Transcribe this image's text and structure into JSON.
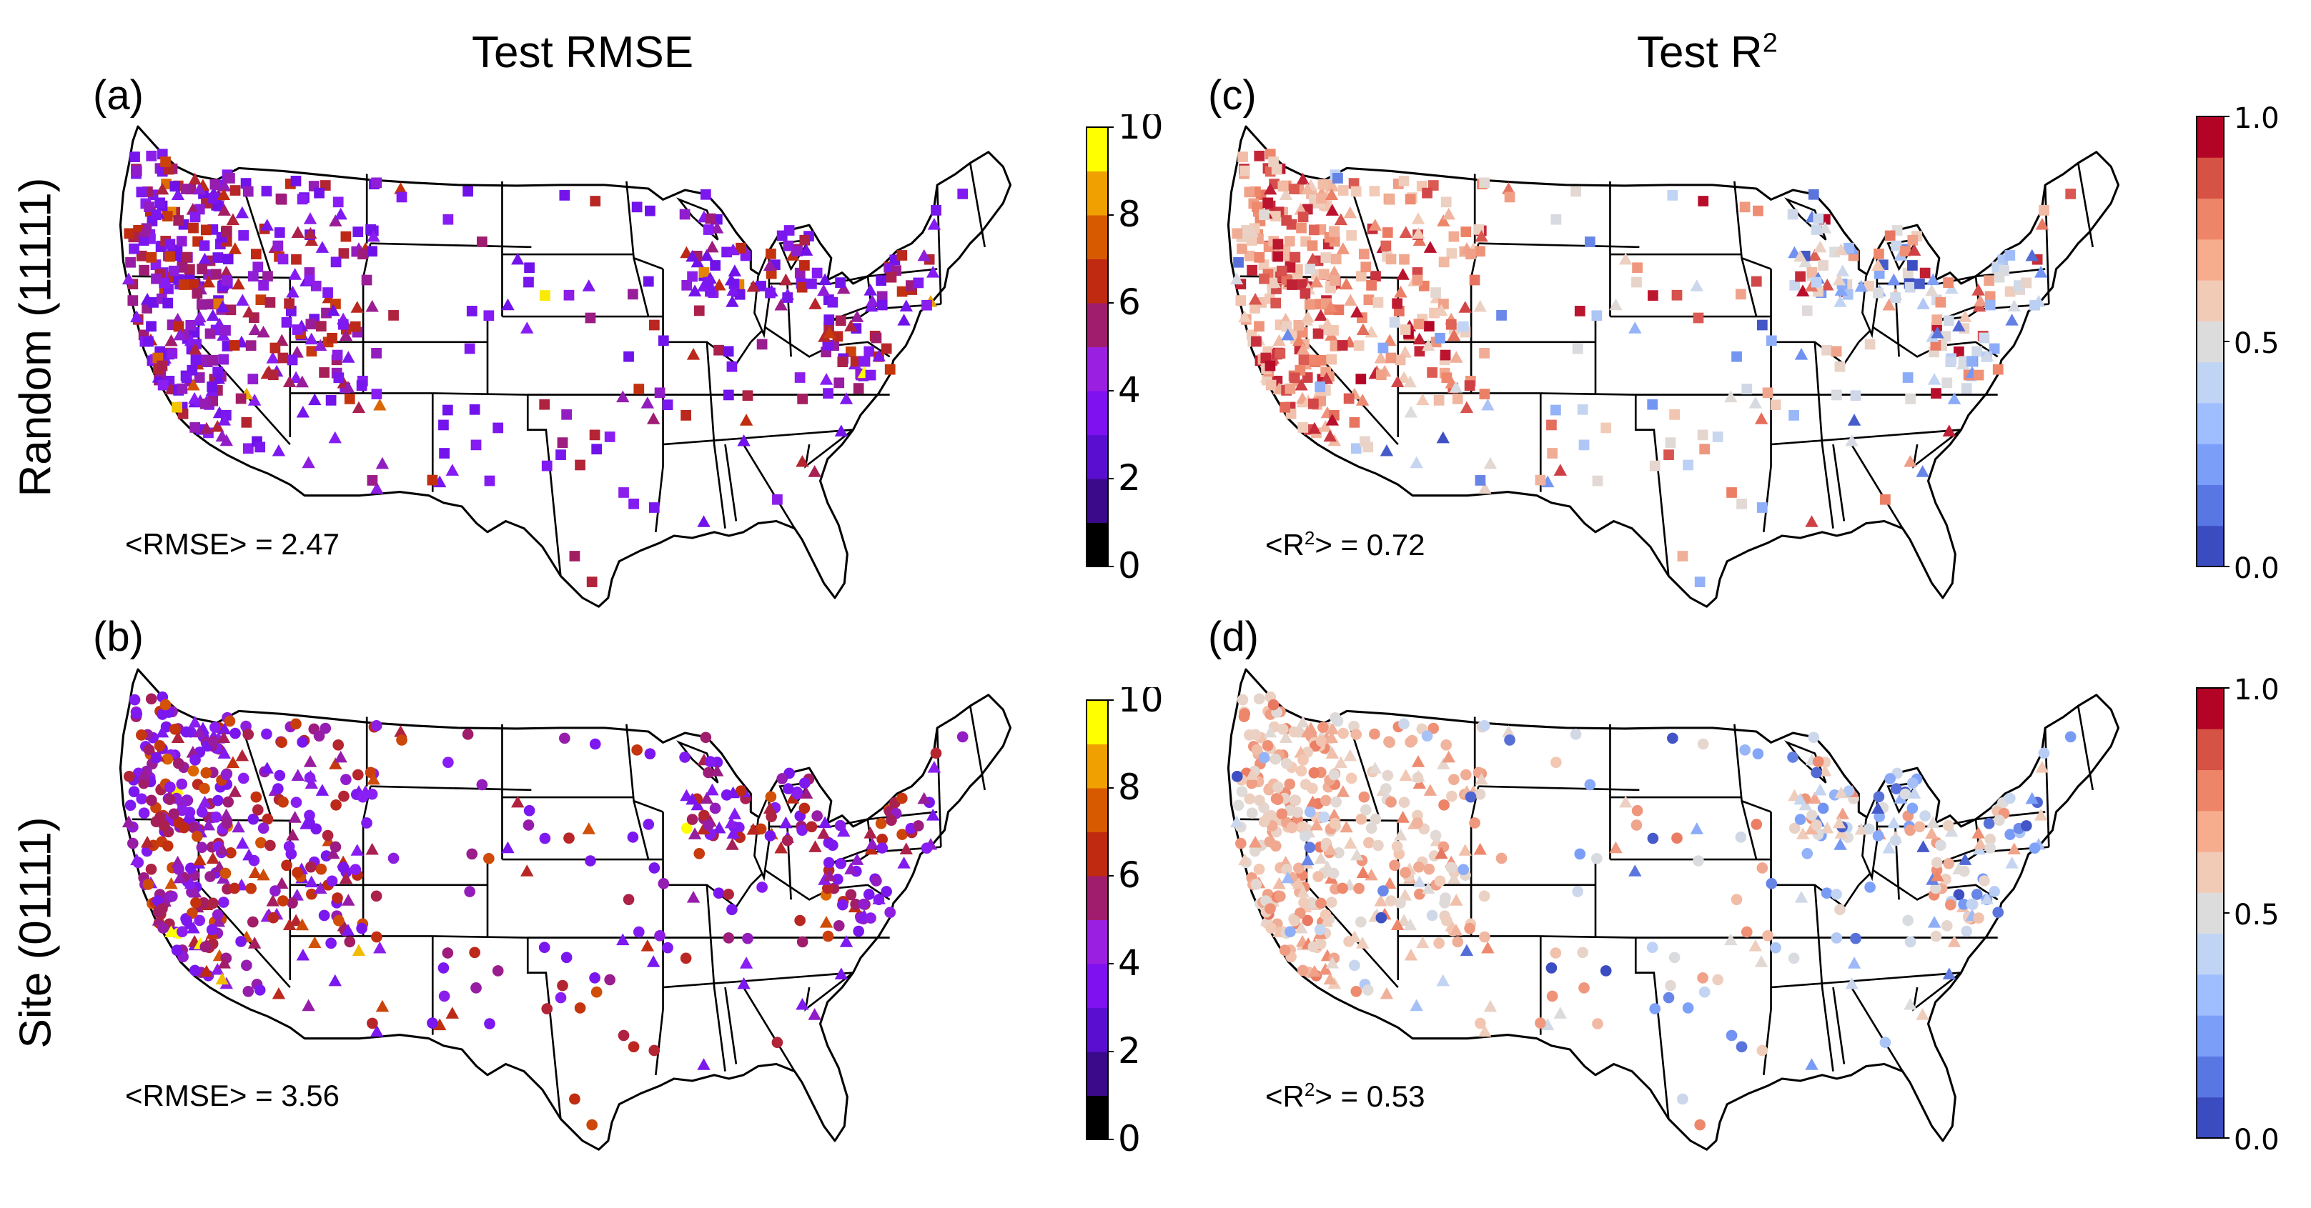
{
  "columns": {
    "left_title": "Test RMSE",
    "right_title": "Test R",
    "right_title_sup": "2"
  },
  "rows": {
    "top_label": "Random (11111)",
    "bottom_label": "Site (01111)"
  },
  "panels": [
    {
      "id": "a",
      "label": "(a)",
      "metric": "rmse",
      "stat_prefix": "<RMSE> = ",
      "stat_value": "2.47",
      "markers": "squares-triangles"
    },
    {
      "id": "b",
      "label": "(b)",
      "metric": "rmse",
      "stat_prefix": "<RMSE> = ",
      "stat_value": "3.56",
      "markers": "circles-triangles"
    },
    {
      "id": "c",
      "label": "(c)",
      "metric": "r2",
      "stat_prefix": "<R",
      "stat_sup": "2",
      "stat_suffix": "> = ",
      "stat_value": "0.72",
      "markers": "squares-triangles"
    },
    {
      "id": "d",
      "label": "(d)",
      "metric": "r2",
      "stat_prefix": "<R",
      "stat_sup": "2",
      "stat_suffix": "> = ",
      "stat_value": "0.53",
      "markers": "circles-triangles"
    }
  ],
  "colorbars": {
    "rmse": {
      "ticks": [
        "0",
        "2",
        "4",
        "6",
        "8",
        "10"
      ],
      "colors": [
        "#000000",
        "#3a0a8a",
        "#5a0fd0",
        "#7f10f0",
        "#9b1fe0",
        "#a01c6c",
        "#c02a10",
        "#d85a00",
        "#f0a000",
        "#ffff00"
      ]
    },
    "r2": {
      "ticks": [
        "0.0",
        "0.5",
        "1.0"
      ],
      "colors": [
        "#3b4cc0",
        "#5977e3",
        "#7b9ff9",
        "#9ebeff",
        "#c0d4f5",
        "#dddcdc",
        "#f2cbb7",
        "#f7ac8e",
        "#ee8468",
        "#d65244",
        "#b40426"
      ]
    }
  }
}
